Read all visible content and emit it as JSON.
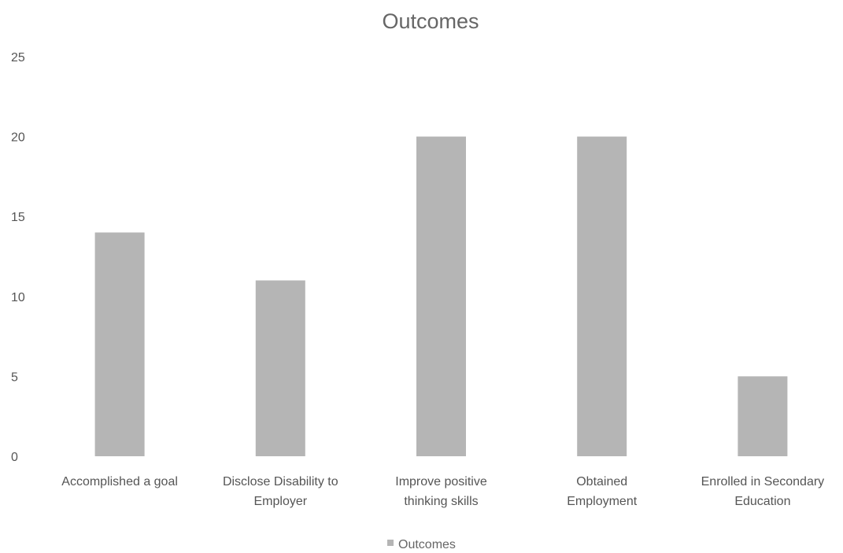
{
  "chart_data": {
    "type": "bar",
    "title": "Outcomes",
    "xlabel": "",
    "ylabel": "",
    "categories": [
      [
        "Accomplished a goal"
      ],
      [
        "Disclose Disability to",
        "Employer"
      ],
      [
        "Improve positive",
        "thinking skills"
      ],
      [
        "Obtained",
        "Employment"
      ],
      [
        "Enrolled in Secondary",
        "Education"
      ]
    ],
    "series": [
      {
        "name": "Outcomes",
        "values": [
          14,
          11,
          20,
          20,
          5
        ],
        "color": "#b5b5b5"
      }
    ],
    "ylim": [
      0,
      25
    ],
    "yticks": [
      "0",
      "5",
      "10",
      "15",
      "20",
      "25"
    ],
    "grid": false,
    "legend": {
      "position": "bottom",
      "label": "Outcomes"
    }
  }
}
